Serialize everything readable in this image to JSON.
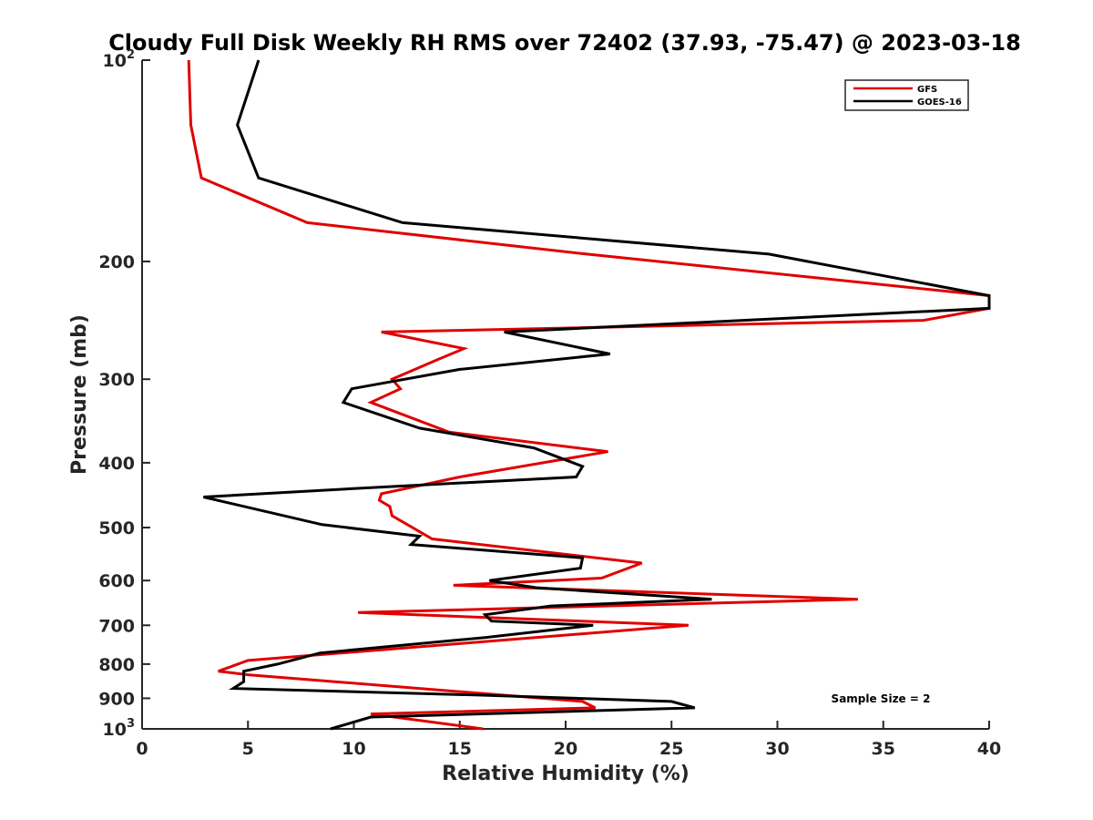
{
  "chart_data": {
    "type": "line",
    "title": "Cloudy Full Disk Weekly RH RMS over 72402 (37.93, -75.47) @ 2023-03-18",
    "xlabel": "Relative Humidity (%)",
    "ylabel": "Pressure (mb)",
    "xlim": [
      0,
      40
    ],
    "ylim": [
      100,
      1000
    ],
    "yscale": "log",
    "y_reversed": true,
    "grid": false,
    "legend_position": "top-right",
    "xticks": [
      {
        "value": 0,
        "label": "0"
      },
      {
        "value": 5,
        "label": "5"
      },
      {
        "value": 10,
        "label": "10"
      },
      {
        "value": 15,
        "label": "15"
      },
      {
        "value": 20,
        "label": "20"
      },
      {
        "value": 25,
        "label": "25"
      },
      {
        "value": 30,
        "label": "30"
      },
      {
        "value": 35,
        "label": "35"
      },
      {
        "value": 40,
        "label": "40"
      }
    ],
    "yticks": [
      {
        "value": 100,
        "base": "10",
        "exp": "2"
      },
      {
        "value": 200,
        "label": "200"
      },
      {
        "value": 300,
        "label": "300"
      },
      {
        "value": 400,
        "label": "400"
      },
      {
        "value": 500,
        "label": "500"
      },
      {
        "value": 600,
        "label": "600"
      },
      {
        "value": 700,
        "label": "700"
      },
      {
        "value": 800,
        "label": "800"
      },
      {
        "value": 900,
        "label": "900"
      },
      {
        "value": 1000,
        "base": "10",
        "exp": "3"
      }
    ],
    "annotation": "Sample Size = 2",
    "series": [
      {
        "name": "GFS",
        "color": "#e00000",
        "points": [
          {
            "x": 2.2,
            "y": 100
          },
          {
            "x": 2.3,
            "y": 125
          },
          {
            "x": 2.8,
            "y": 150
          },
          {
            "x": 7.8,
            "y": 175
          },
          {
            "x": 21.0,
            "y": 195
          },
          {
            "x": 40.0,
            "y": 225
          },
          {
            "x": 40.0,
            "y": 235
          },
          {
            "x": 36.9,
            "y": 245
          },
          {
            "x": 11.3,
            "y": 255
          },
          {
            "x": 15.2,
            "y": 270
          },
          {
            "x": 14.0,
            "y": 280
          },
          {
            "x": 11.8,
            "y": 300
          },
          {
            "x": 12.2,
            "y": 310
          },
          {
            "x": 10.8,
            "y": 325
          },
          {
            "x": 14.5,
            "y": 360
          },
          {
            "x": 22.0,
            "y": 385
          },
          {
            "x": 15.0,
            "y": 420
          },
          {
            "x": 11.3,
            "y": 445
          },
          {
            "x": 11.2,
            "y": 455
          },
          {
            "x": 11.7,
            "y": 465
          },
          {
            "x": 11.8,
            "y": 480
          },
          {
            "x": 13.7,
            "y": 520
          },
          {
            "x": 23.6,
            "y": 565
          },
          {
            "x": 21.7,
            "y": 595
          },
          {
            "x": 14.7,
            "y": 610
          },
          {
            "x": 33.8,
            "y": 640
          },
          {
            "x": 10.2,
            "y": 670
          },
          {
            "x": 25.8,
            "y": 700
          },
          {
            "x": 5.0,
            "y": 790
          },
          {
            "x": 3.6,
            "y": 820
          },
          {
            "x": 5.0,
            "y": 830
          },
          {
            "x": 20.8,
            "y": 910
          },
          {
            "x": 21.4,
            "y": 930
          },
          {
            "x": 10.8,
            "y": 950
          },
          {
            "x": 16.1,
            "y": 1000
          }
        ]
      },
      {
        "name": "GOES-16",
        "color": "#000000",
        "points": [
          {
            "x": 5.5,
            "y": 100
          },
          {
            "x": 4.5,
            "y": 125
          },
          {
            "x": 5.5,
            "y": 150
          },
          {
            "x": 12.3,
            "y": 175
          },
          {
            "x": 29.6,
            "y": 195
          },
          {
            "x": 40.0,
            "y": 225
          },
          {
            "x": 40.0,
            "y": 235
          },
          {
            "x": 17.1,
            "y": 255
          },
          {
            "x": 22.1,
            "y": 275
          },
          {
            "x": 15.0,
            "y": 290
          },
          {
            "x": 9.9,
            "y": 310
          },
          {
            "x": 9.5,
            "y": 325
          },
          {
            "x": 13.1,
            "y": 355
          },
          {
            "x": 18.5,
            "y": 380
          },
          {
            "x": 20.8,
            "y": 405
          },
          {
            "x": 20.5,
            "y": 420
          },
          {
            "x": 11.2,
            "y": 435
          },
          {
            "x": 2.9,
            "y": 450
          },
          {
            "x": 8.5,
            "y": 495
          },
          {
            "x": 13.1,
            "y": 515
          },
          {
            "x": 12.7,
            "y": 530
          },
          {
            "x": 20.8,
            "y": 555
          },
          {
            "x": 20.7,
            "y": 575
          },
          {
            "x": 16.4,
            "y": 600
          },
          {
            "x": 18.6,
            "y": 615
          },
          {
            "x": 26.9,
            "y": 640
          },
          {
            "x": 19.3,
            "y": 655
          },
          {
            "x": 16.2,
            "y": 675
          },
          {
            "x": 16.5,
            "y": 690
          },
          {
            "x": 21.3,
            "y": 700
          },
          {
            "x": 16.2,
            "y": 730
          },
          {
            "x": 8.4,
            "y": 770
          },
          {
            "x": 6.4,
            "y": 800
          },
          {
            "x": 4.8,
            "y": 820
          },
          {
            "x": 4.8,
            "y": 850
          },
          {
            "x": 4.3,
            "y": 870
          },
          {
            "x": 15.9,
            "y": 890
          },
          {
            "x": 25.0,
            "y": 910
          },
          {
            "x": 26.1,
            "y": 930
          },
          {
            "x": 10.8,
            "y": 960
          },
          {
            "x": 8.9,
            "y": 1000
          }
        ]
      }
    ]
  }
}
